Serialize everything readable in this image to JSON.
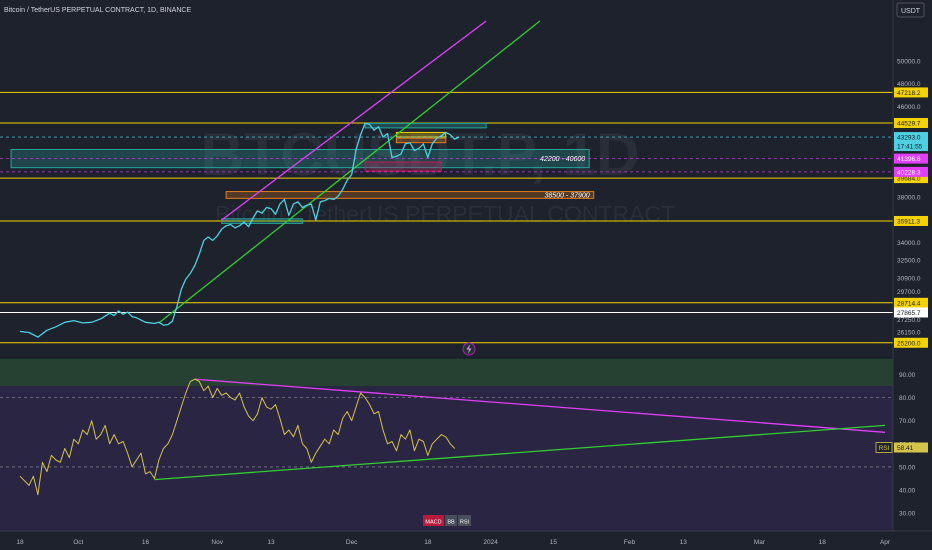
{
  "header": {
    "title": "Bitcoin / TetherUS PERPETUAL CONTRACT, 1D, BINANCE",
    "currency": "USDT"
  },
  "watermark": {
    "ticker": "BTCUSDT.P, 1D",
    "name": "Bitcoin / TetherUS PERPETUAL CONTRACT"
  },
  "indicator_buttons": [
    "MACD",
    "BB",
    "RSI"
  ],
  "colors": {
    "bg": "#1e222d",
    "price": "#4dd0e1",
    "rsi": "#d4c44a",
    "channel_upper": "#e040fb",
    "trend": "#32cd32",
    "level": "#f5d300",
    "zone": "#26a69a",
    "orange": "#e07b1a",
    "magenta_zone": "#c2185b"
  },
  "chart_data": [
    {
      "type": "line",
      "panel": "price",
      "ylim": [
        24300,
        53500
      ],
      "x_ticks": [
        {
          "label": "18",
          "day": 0
        },
        {
          "label": "Oct",
          "day": 13
        },
        {
          "label": "16",
          "day": 28
        },
        {
          "label": "Nov",
          "day": 44
        },
        {
          "label": "13",
          "day": 56
        },
        {
          "label": "Dec",
          "day": 74
        },
        {
          "label": "18",
          "day": 91
        },
        {
          "label": "2024",
          "day": 105
        },
        {
          "label": "15",
          "day": 119
        },
        {
          "label": "Feb",
          "day": 136
        },
        {
          "label": "13",
          "day": 148
        },
        {
          "label": "Mar",
          "day": 165
        },
        {
          "label": "18",
          "day": 179
        },
        {
          "label": "Apr",
          "day": 193
        }
      ],
      "y_ticks": [
        50000,
        48000,
        46000,
        43293,
        38000,
        36000,
        34000,
        32500,
        30900,
        29700,
        27250,
        26150
      ],
      "y_tick_labels": [
        "50000.0",
        "48000.0",
        "46000.0",
        "43293.0",
        "38000.0",
        "36000.0",
        "34000.0",
        "32500.0",
        "30900.0",
        "29700.0",
        "27250.0",
        "26150.0"
      ],
      "price_series": [
        [
          0,
          26200
        ],
        [
          2,
          26100
        ],
        [
          4,
          25700
        ],
        [
          6,
          26300
        ],
        [
          8,
          26600
        ],
        [
          10,
          27000
        ],
        [
          12,
          27150
        ],
        [
          14,
          26950
        ],
        [
          16,
          27000
        ],
        [
          18,
          27300
        ],
        [
          20,
          27800
        ],
        [
          21,
          27600
        ],
        [
          22,
          28000
        ],
        [
          23,
          27700
        ],
        [
          24,
          27900
        ],
        [
          25,
          27500
        ],
        [
          26,
          27400
        ],
        [
          28,
          27000
        ],
        [
          30,
          26900
        ],
        [
          31,
          27000
        ],
        [
          32,
          26750
        ],
        [
          33,
          26800
        ],
        [
          34,
          27100
        ],
        [
          35,
          28400
        ],
        [
          36,
          29900
        ],
        [
          37,
          30800
        ],
        [
          38,
          31300
        ],
        [
          39,
          32000
        ],
        [
          40,
          33000
        ],
        [
          41,
          34200
        ],
        [
          42,
          34500
        ],
        [
          43,
          34200
        ],
        [
          44,
          34600
        ],
        [
          45,
          35200
        ],
        [
          46,
          35500
        ],
        [
          47,
          35600
        ],
        [
          48,
          35300
        ],
        [
          49,
          35500
        ],
        [
          50,
          35800
        ],
        [
          51,
          35400
        ],
        [
          52,
          36200
        ],
        [
          53,
          36800
        ],
        [
          54,
          36600
        ],
        [
          55,
          37100
        ],
        [
          56,
          37000
        ],
        [
          57,
          36500
        ],
        [
          58,
          37400
        ],
        [
          59,
          37800
        ],
        [
          60,
          36400
        ],
        [
          61,
          37400
        ],
        [
          62,
          37600
        ],
        [
          63,
          37100
        ],
        [
          64,
          37300
        ],
        [
          65,
          37400
        ],
        [
          66,
          36000
        ],
        [
          67,
          37600
        ],
        [
          68,
          37700
        ],
        [
          69,
          37900
        ],
        [
          70,
          37800
        ],
        [
          71,
          38100
        ],
        [
          72,
          38700
        ],
        [
          73,
          39500
        ],
        [
          74,
          40000
        ],
        [
          75,
          42200
        ],
        [
          76,
          43500
        ],
        [
          77,
          44500
        ],
        [
          78,
          44400
        ],
        [
          79,
          43900
        ],
        [
          80,
          44200
        ],
        [
          81,
          43300
        ],
        [
          82,
          43600
        ],
        [
          83,
          41500
        ],
        [
          84,
          41600
        ],
        [
          85,
          41800
        ],
        [
          86,
          42700
        ],
        [
          87,
          42800
        ],
        [
          88,
          42100
        ],
        [
          89,
          42300
        ],
        [
          90,
          42700
        ],
        [
          91,
          41500
        ],
        [
          92,
          42700
        ],
        [
          93,
          43200
        ],
        [
          94,
          43400
        ],
        [
          95,
          43700
        ],
        [
          96,
          43500
        ],
        [
          97,
          43100
        ],
        [
          98,
          43300
        ]
      ],
      "levels": [
        {
          "label": "47218.2",
          "value": 47218.2,
          "color": "#f5d300"
        },
        {
          "label": "44529.7",
          "value": 44529.7,
          "color": "#f5d300"
        },
        {
          "label": "39684.0",
          "value": 39684.0,
          "color": "#f5d300"
        },
        {
          "label": "35911.3",
          "value": 35911.3,
          "color": "#f5d300"
        },
        {
          "label": "28714.4",
          "value": 28714.4,
          "color": "#f5d300"
        },
        {
          "label": "27865.7",
          "value": 27865.7,
          "color": "#ffffff"
        },
        {
          "label": "25200.0",
          "value": 25200.0,
          "color": "#f5d300"
        }
      ],
      "marks": [
        {
          "label": "43293.0",
          "time": "17:41:55",
          "value": 43293.0,
          "color": "#4dd0e1"
        },
        {
          "label": "41396.6",
          "value": 41396.6,
          "color": "#e040fb",
          "dashed": true
        },
        {
          "label": "40228.3",
          "value": 40228.3,
          "color": "#e040fb",
          "dashed": true
        }
      ],
      "zones": [
        {
          "label": "42200 - 40600",
          "from_day": -2,
          "to_day": 127,
          "low": 40600,
          "high": 42200,
          "color": "#26a69a"
        },
        {
          "label": "38500 - 37900",
          "from_day": 46,
          "to_day": 128,
          "low": 37900,
          "high": 38500,
          "color": "#e07b1a"
        }
      ],
      "small_boxes": [
        {
          "from_day": 77,
          "to_day": 104,
          "low": 44100,
          "high": 44500,
          "color": "#26a69a"
        },
        {
          "from_day": 84,
          "to_day": 95,
          "low": 43300,
          "high": 43700,
          "color": "#f5d300"
        },
        {
          "from_day": 84,
          "to_day": 95,
          "low": 42800,
          "high": 43200,
          "color": "#e07b1a"
        },
        {
          "from_day": 77,
          "to_day": 94,
          "low": 40300,
          "high": 41100,
          "color": "#c2185b"
        },
        {
          "from_day": 45,
          "to_day": 63,
          "low": 35700,
          "high": 36100,
          "color": "#26a69a"
        }
      ],
      "trendlines": [
        {
          "color": "#32cd32",
          "from": [
            31,
            26950
          ],
          "to": [
            116,
            53500
          ]
        },
        {
          "color": "#e040fb",
          "from": [
            45,
            36000
          ],
          "to": [
            104,
            53500
          ]
        }
      ]
    },
    {
      "type": "line",
      "panel": "rsi",
      "ylim": [
        24,
        95
      ],
      "y_ticks": [
        90,
        80,
        70,
        60,
        50,
        40,
        30
      ],
      "y_tick_labels": [
        "90.00",
        "80.00",
        "70.00",
        "60.00",
        "50.00",
        "40.00",
        "30.00"
      ],
      "overbought": 80,
      "oversold": 50,
      "rsi_label": "RSI",
      "rsi_value": "58.41",
      "rsi_series": [
        [
          0,
          46
        ],
        [
          1,
          44
        ],
        [
          2,
          42
        ],
        [
          3,
          46
        ],
        [
          4,
          38
        ],
        [
          5,
          52
        ],
        [
          6,
          48
        ],
        [
          7,
          55
        ],
        [
          8,
          53
        ],
        [
          9,
          52
        ],
        [
          10,
          58
        ],
        [
          11,
          54
        ],
        [
          12,
          62
        ],
        [
          13,
          60
        ],
        [
          14,
          66
        ],
        [
          15,
          64
        ],
        [
          16,
          70
        ],
        [
          17,
          62
        ],
        [
          18,
          64
        ],
        [
          19,
          68
        ],
        [
          20,
          60
        ],
        [
          21,
          64
        ],
        [
          22,
          60
        ],
        [
          23,
          61
        ],
        [
          24,
          56
        ],
        [
          25,
          50
        ],
        [
          26,
          53
        ],
        [
          27,
          56
        ],
        [
          28,
          47
        ],
        [
          29,
          48
        ],
        [
          30,
          45
        ],
        [
          31,
          53
        ],
        [
          32,
          58
        ],
        [
          33,
          60
        ],
        [
          34,
          64
        ],
        [
          35,
          70
        ],
        [
          36,
          76
        ],
        [
          37,
          82
        ],
        [
          38,
          87
        ],
        [
          39,
          88
        ],
        [
          40,
          87
        ],
        [
          41,
          83
        ],
        [
          42,
          85
        ],
        [
          43,
          80
        ],
        [
          44,
          84
        ],
        [
          45,
          81
        ],
        [
          46,
          82
        ],
        [
          47,
          80
        ],
        [
          48,
          79
        ],
        [
          49,
          82
        ],
        [
          50,
          76
        ],
        [
          51,
          72
        ],
        [
          52,
          70
        ],
        [
          53,
          73
        ],
        [
          54,
          80
        ],
        [
          55,
          76
        ],
        [
          56,
          75
        ],
        [
          57,
          77
        ],
        [
          58,
          71
        ],
        [
          59,
          64
        ],
        [
          60,
          66
        ],
        [
          61,
          63
        ],
        [
          62,
          68
        ],
        [
          63,
          60
        ],
        [
          64,
          58
        ],
        [
          65,
          52
        ],
        [
          66,
          56
        ],
        [
          67,
          59
        ],
        [
          68,
          62
        ],
        [
          69,
          60
        ],
        [
          70,
          66
        ],
        [
          71,
          64
        ],
        [
          72,
          71
        ],
        [
          73,
          74
        ],
        [
          74,
          70
        ],
        [
          75,
          76
        ],
        [
          76,
          82
        ],
        [
          77,
          80
        ],
        [
          78,
          77
        ],
        [
          79,
          73
        ],
        [
          80,
          74
        ],
        [
          81,
          66
        ],
        [
          82,
          60
        ],
        [
          83,
          61
        ],
        [
          84,
          57
        ],
        [
          85,
          64
        ],
        [
          86,
          62
        ],
        [
          87,
          66
        ],
        [
          88,
          57
        ],
        [
          89,
          62
        ],
        [
          90,
          61
        ],
        [
          91,
          55
        ],
        [
          92,
          60
        ],
        [
          93,
          62
        ],
        [
          94,
          64
        ],
        [
          95,
          63
        ],
        [
          96,
          60
        ],
        [
          97,
          58
        ]
      ],
      "trendlines": [
        {
          "color": "#e040fb",
          "from": [
            39,
            88
          ],
          "to": [
            193,
            65
          ]
        },
        {
          "color": "#32cd32",
          "from": [
            30,
            44.5
          ],
          "to": [
            193,
            68
          ]
        }
      ]
    }
  ]
}
